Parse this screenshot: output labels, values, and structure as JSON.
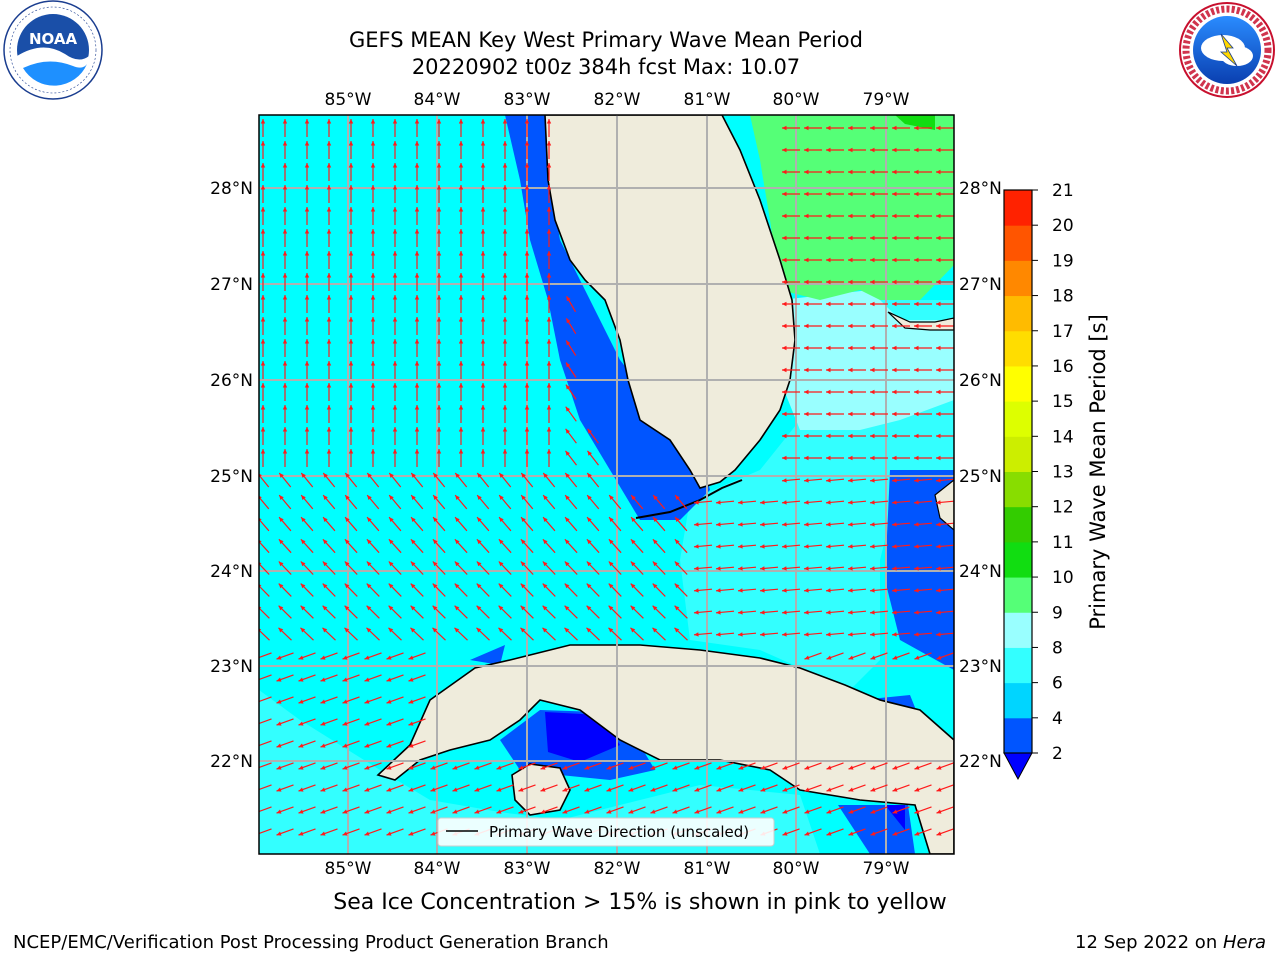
{
  "header": {
    "title_line1": "GEFS MEAN Key West Primary Wave Mean Period",
    "title_line2": "20220902 t00z 384h fcst   Max: 10.07"
  },
  "logos": {
    "left": {
      "name": "NOAA",
      "ring_text": "NATIONAL OCEANIC AND ATMOSPHERIC ADMINISTRATION · U.S. DEPARTMENT OF COMMERCE ·"
    },
    "right": {
      "name": "NATIONAL WEATHER SERVICE"
    }
  },
  "map": {
    "lon_labels": [
      "85°W",
      "84°W",
      "83°W",
      "82°W",
      "81°W",
      "80°W",
      "79°W"
    ],
    "lat_labels": [
      "28°N",
      "27°N",
      "26°N",
      "25°N",
      "24°N",
      "23°N",
      "22°N"
    ],
    "colors": {
      "ocean_base": "#00ffff",
      "land": "#efecdc",
      "arrow": "#ff1a1a",
      "grid": "#b0b0b0"
    },
    "legend_label": "Primary Wave Direction (unscaled)"
  },
  "colorbar": {
    "title": "Primary Wave Mean Period [s]",
    "ticks": [
      "2",
      "4",
      "6",
      "8",
      "9",
      "10",
      "11",
      "12",
      "13",
      "14",
      "15",
      "16",
      "17",
      "18",
      "19",
      "20",
      "21"
    ],
    "colors": [
      "#0055ff",
      "#00d5ff",
      "#33ffff",
      "#99ffff",
      "#55ff77",
      "#11dd11",
      "#33cc00",
      "#88dd00",
      "#ccee00",
      "#ddff00",
      "#ffff00",
      "#ffdd00",
      "#ffbb00",
      "#ff8800",
      "#ff5500",
      "#ff2200"
    ]
  },
  "chart_data": {
    "type": "heatmap",
    "title": "GEFS MEAN Key West Primary Wave Mean Period",
    "subtitle": "20220902 t00z 384h fcst   Max: 10.07",
    "variable": "Primary Wave Mean Period [s]",
    "max_value": 10.07,
    "x_ticks": [
      "85°W",
      "84°W",
      "83°W",
      "82°W",
      "81°W",
      "80°W",
      "79°W"
    ],
    "y_ticks": [
      "28°N",
      "27°N",
      "26°N",
      "25°N",
      "24°N",
      "23°N",
      "22°N"
    ],
    "colorbar_levels": [
      2,
      4,
      6,
      8,
      9,
      10,
      11,
      12,
      13,
      14,
      15,
      16,
      17,
      18,
      19,
      20,
      21
    ],
    "legend": [
      "Primary Wave Direction (unscaled)"
    ]
  },
  "footer": {
    "note": "Sea Ice Concentration > 15% is shown in pink to yellow",
    "left": "NCEP/EMC/Verification Post Processing Product Generation Branch",
    "right_date": "12 Sep 2022 on ",
    "right_host": "Hera"
  }
}
